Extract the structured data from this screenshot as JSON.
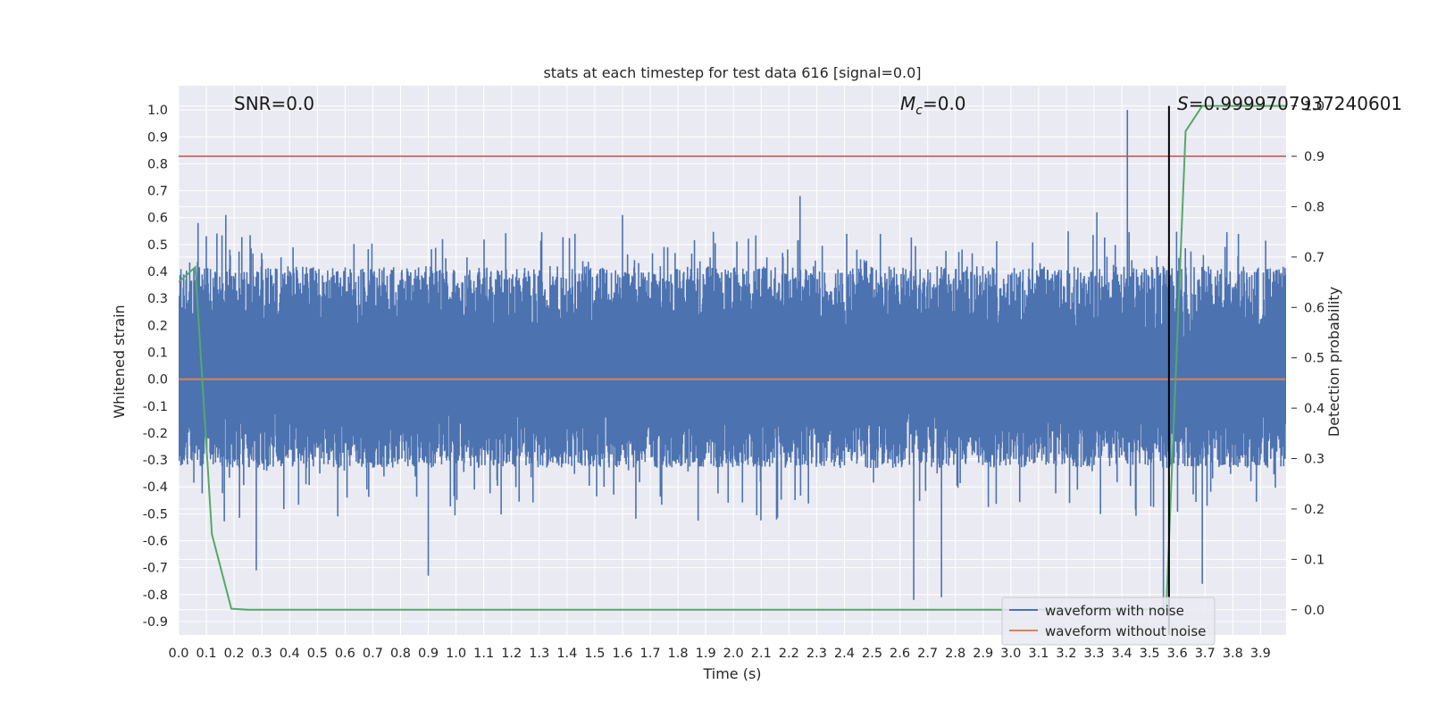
{
  "chart_data": {
    "type": "line",
    "title": "stats at each timestep for test data 616 [signal=0.0]",
    "xlabel": "Time (s)",
    "ylabel": "Whitened strain",
    "y2label": "Detection probability",
    "xlim": [
      0.0,
      3.9921875
    ],
    "ylim": [
      -0.95,
      1.09
    ],
    "y2lim": [
      -0.05,
      1.04
    ],
    "x_ticks": [
      "0.0",
      "0.1",
      "0.2",
      "0.3",
      "0.4",
      "0.5",
      "0.6",
      "0.7",
      "0.8",
      "0.9",
      "1.0",
      "1.1",
      "1.2",
      "1.3",
      "1.4",
      "1.5",
      "1.6",
      "1.7",
      "1.8",
      "1.9",
      "2.0",
      "2.1",
      "2.2",
      "2.3",
      "2.4",
      "2.5",
      "2.6",
      "2.7",
      "2.8",
      "2.9",
      "3.0",
      "3.1",
      "3.2",
      "3.3",
      "3.4",
      "3.5",
      "3.6",
      "3.7",
      "3.8",
      "3.9"
    ],
    "y_ticks": [
      "1.0",
      "0.9",
      "0.8",
      "0.7",
      "0.6",
      "0.5",
      "0.4",
      "0.3",
      "0.2",
      "0.1",
      "0.0",
      "-0.1",
      "-0.2",
      "-0.3",
      "-0.4",
      "-0.5",
      "-0.6",
      "-0.7",
      "-0.8",
      "-0.9"
    ],
    "y2_ticks": [
      "1.0",
      "0.9",
      "0.8",
      "0.7",
      "0.6",
      "0.5",
      "0.4",
      "0.3",
      "0.2",
      "0.1",
      "0.0"
    ],
    "annotations": {
      "snr": "SNR=0.0",
      "mc_symbol": "M",
      "mc_sub": "c",
      "mc_value": "=0.0",
      "s_symbol": "S",
      "s_value": "=0.9999707937240601"
    },
    "legend": {
      "placement": "lower-right",
      "entries": [
        "waveform with noise",
        "waveform without noise"
      ]
    },
    "threshold": {
      "axis": "secondary",
      "y": 0.9,
      "color": "#c44e52"
    },
    "marker_line": {
      "x": 3.57,
      "color": "#000000"
    },
    "noise_envelope": {
      "series": "waveform with noise",
      "color": "#4c72b0",
      "x_range": [
        0.0,
        3.99
      ],
      "typical_max": 0.42,
      "typical_min": -0.33,
      "peaks": [
        {
          "x": 3.42,
          "y": 1.0
        },
        {
          "x": 2.24,
          "y": 0.68
        },
        {
          "x": 0.07,
          "y": 0.58
        },
        {
          "x": 0.17,
          "y": 0.61
        },
        {
          "x": 1.6,
          "y": 0.61
        },
        {
          "x": 3.31,
          "y": 0.62
        },
        {
          "x": 3.55,
          "y": -0.88
        },
        {
          "x": 2.65,
          "y": -0.82
        },
        {
          "x": 2.75,
          "y": -0.81
        },
        {
          "x": 0.9,
          "y": -0.73
        },
        {
          "x": 0.28,
          "y": -0.71
        },
        {
          "x": 3.69,
          "y": -0.76
        }
      ]
    },
    "series": [
      {
        "name": "waveform without noise",
        "color": "#dd8452",
        "x": [
          0.0,
          3.99
        ],
        "y": [
          0.0,
          0.0
        ]
      },
      {
        "name": "detection probability",
        "axis": "secondary",
        "color": "#55a868",
        "x": [
          0.0,
          0.06,
          0.12,
          0.19,
          0.25,
          0.5,
          1.0,
          2.0,
          3.0,
          3.5,
          3.56,
          3.63,
          3.69,
          3.99
        ],
        "y": [
          0.65,
          0.68,
          0.15,
          0.002,
          0.0,
          0.0,
          0.0,
          0.0,
          0.0,
          0.001,
          0.0,
          0.95,
          1.0,
          1.0
        ]
      }
    ]
  }
}
